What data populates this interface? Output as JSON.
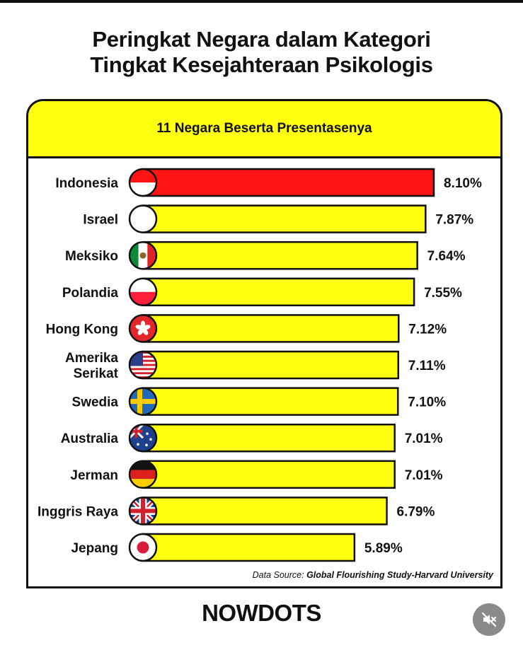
{
  "title": {
    "line1": "Peringkat Negara dalam Kategori",
    "line2": "Tingkat Kesejahteraan Psikologis"
  },
  "card": {
    "header": "11 Negara Beserta Presentasenya",
    "source_prefix": "Data Source: ",
    "source_name": "Global Flourishing Study-Harvard University"
  },
  "brand": "NOWDOTS",
  "mute_icon": "speaker-muted-icon",
  "colors": {
    "highlight_bar": "#ff1414",
    "default_bar": "#ffff0f",
    "header_bg": "#ffff0f",
    "outline": "#111111"
  },
  "chart_data": {
    "type": "bar",
    "orientation": "horizontal",
    "title": "11 Negara Beserta Presentasenya",
    "categories": [
      "Indonesia",
      "Israel",
      "Meksiko",
      "Polandia",
      "Hong Kong",
      "Amerika Serikat",
      "Swedia",
      "Australia",
      "Jerman",
      "Inggris Raya",
      "Jepang"
    ],
    "category_lines": [
      [
        "Indonesia"
      ],
      [
        "Israel"
      ],
      [
        "Meksiko"
      ],
      [
        "Polandia"
      ],
      [
        "Hong Kong"
      ],
      [
        "Amerika",
        "Serikat"
      ],
      [
        "Swedia"
      ],
      [
        "Australia"
      ],
      [
        "Jerman"
      ],
      [
        "Inggris Raya"
      ],
      [
        "Jepang"
      ]
    ],
    "values": [
      8.1,
      7.87,
      7.64,
      7.55,
      7.12,
      7.11,
      7.1,
      7.01,
      7.01,
      6.79,
      5.89
    ],
    "value_labels": [
      "8.10%",
      "7.87%",
      "7.64%",
      "7.55%",
      "7.12%",
      "7.11%",
      "7.10%",
      "7.01%",
      "7.01%",
      "6.79%",
      "5.89%"
    ],
    "flags": [
      "indonesia-flag-icon",
      "israel-flag-icon",
      "mexico-flag-icon",
      "poland-flag-icon",
      "hong-kong-flag-icon",
      "usa-flag-icon",
      "sweden-flag-icon",
      "australia-flag-icon",
      "germany-flag-icon",
      "uk-flag-icon",
      "japan-flag-icon"
    ],
    "highlight_index": 0,
    "xlim": [
      0,
      8.1
    ],
    "grid": false,
    "legend": "none"
  }
}
